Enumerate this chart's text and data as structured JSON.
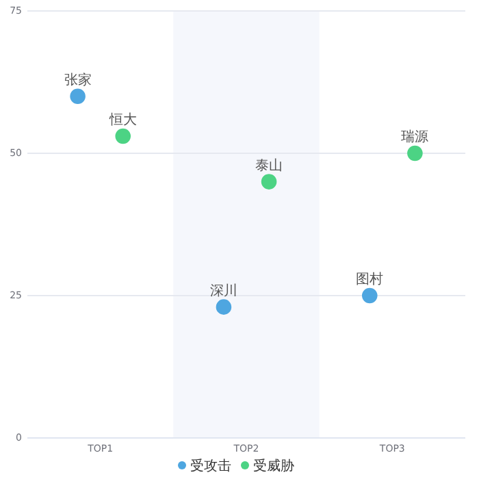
{
  "chart_data": {
    "type": "scatter",
    "categories": [
      "TOP1",
      "TOP2",
      "TOP3"
    ],
    "series": [
      {
        "name": "受攻击",
        "color": "#4ea6e0",
        "values": [
          60,
          23,
          25
        ],
        "value_labels": [
          "张家",
          "深川",
          "图村"
        ]
      },
      {
        "name": "受威胁",
        "color": "#4cd384",
        "values": [
          53,
          45,
          50
        ],
        "value_labels": [
          "恒大",
          "泰山",
          "瑞源"
        ]
      }
    ],
    "ylim": [
      0,
      75
    ],
    "yticks": [
      0,
      25,
      50,
      75
    ],
    "grid": "y",
    "legend": "bottom",
    "marker": "circle",
    "bands": [
      {
        "axis": "x",
        "from": "TOP2",
        "to": "TOP2",
        "color": "#f5f7fc"
      }
    ]
  }
}
